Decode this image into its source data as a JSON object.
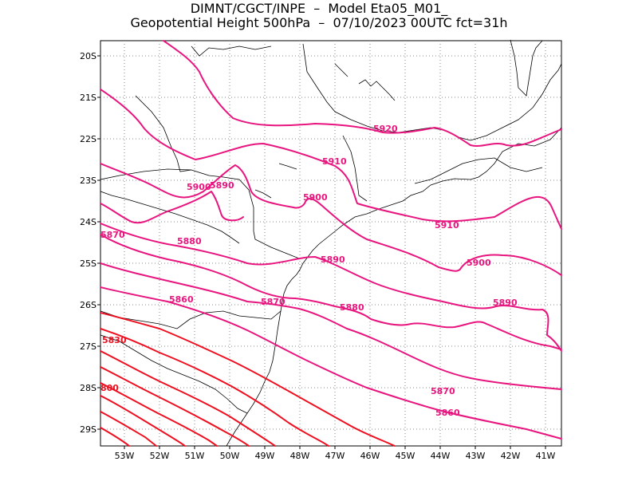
{
  "title": {
    "line1": "DIMNT/CGCT/INPE  –  Model Eta05_M01_",
    "line2": "Geopotential Height 500hPa  –  07/10/2023 00UTC fct=31h"
  },
  "map": {
    "lon_range": [
      -53.65,
      -40.5
    ],
    "lat_range": [
      -29.4,
      -19.7
    ],
    "lat_ticks": [
      "20S",
      "21S",
      "22S",
      "23S",
      "24S",
      "25S",
      "26S",
      "27S",
      "28S",
      "29S"
    ],
    "lon_ticks": [
      "53W",
      "52W",
      "51W",
      "50W",
      "49W",
      "48W",
      "47W",
      "46W",
      "45W",
      "44W",
      "43W",
      "42W",
      "41W"
    ],
    "contour_labels": [
      {
        "text": "5920",
        "color": "#e8157f"
      },
      {
        "text": "5910",
        "color": "#e8157f"
      },
      {
        "text": "5900",
        "color": "#e8157f"
      },
      {
        "text": "5890",
        "color": "#e8157f"
      },
      {
        "text": "5900",
        "color": "#e8157f"
      },
      {
        "text": "5910",
        "color": "#e8157f"
      },
      {
        "text": "5900",
        "color": "#e8157f"
      },
      {
        "text": "5890",
        "color": "#e8157f"
      },
      {
        "text": "5880",
        "color": "#e8157f"
      },
      {
        "text": "5870",
        "color": "#e8157f"
      },
      {
        "text": "5890",
        "color": "#e8157f"
      },
      {
        "text": "5880",
        "color": "#e8157f"
      },
      {
        "text": "5860",
        "color": "#e8157f"
      },
      {
        "text": "5870",
        "color": "#e8157f"
      },
      {
        "text": "5830",
        "color": "#ee1020"
      },
      {
        "text": "800",
        "color": "#ee1020"
      },
      {
        "text": "5870",
        "color": "#e8157f"
      },
      {
        "text": "5860",
        "color": "#e8157f"
      }
    ],
    "colors": {
      "high_contours": "#e8157f",
      "low_contours": "#ee1020",
      "coastline": "#000000",
      "grid": "#888888"
    }
  }
}
